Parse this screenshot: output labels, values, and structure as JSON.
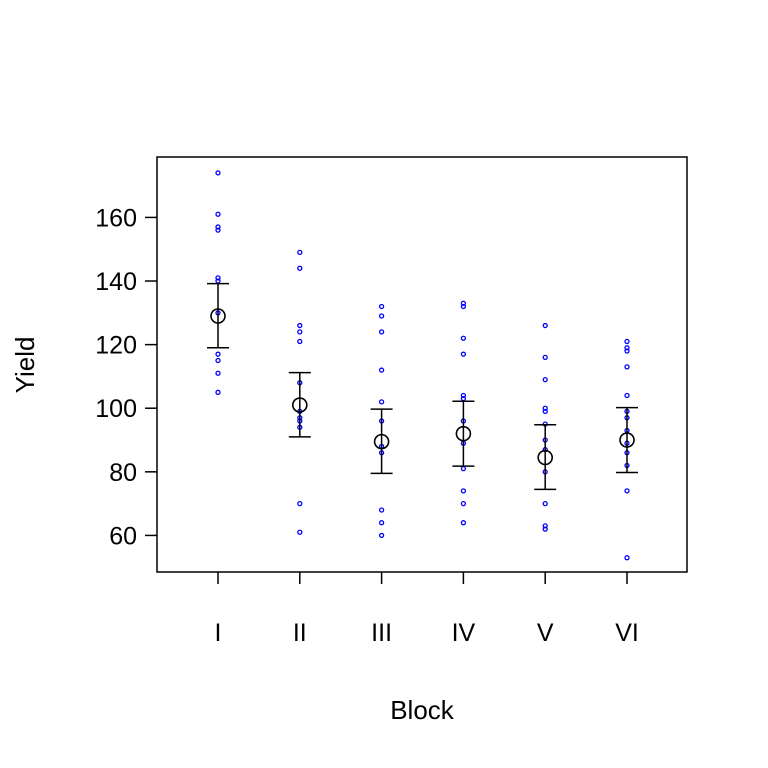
{
  "chart_data": {
    "type": "scatter",
    "xlabel": "Block",
    "ylabel": "Yield",
    "categories": [
      "I",
      "II",
      "III",
      "IV",
      "V",
      "VI"
    ],
    "ylim": [
      48.5,
      179
    ],
    "yticks": [
      60,
      80,
      100,
      120,
      140,
      160
    ],
    "grid": false,
    "colors": {
      "points": "#0000ff",
      "means": "#000000",
      "axes": "#000000"
    },
    "observations": [
      [
        174,
        161,
        157,
        156,
        141,
        140,
        130,
        117,
        115,
        111,
        105
      ],
      [
        149,
        144,
        126,
        124,
        121,
        108,
        99,
        97,
        96,
        94,
        70,
        61
      ],
      [
        132,
        129,
        124,
        112,
        102,
        96,
        88,
        86,
        68,
        64,
        60
      ],
      [
        133,
        132,
        122,
        117,
        104,
        103,
        96,
        89,
        81,
        74,
        70,
        64
      ],
      [
        126,
        116,
        109,
        100,
        99,
        95,
        90,
        87,
        80,
        70,
        63,
        62
      ],
      [
        121,
        119,
        118,
        113,
        104,
        99,
        97,
        93,
        89,
        86,
        82,
        74,
        53
      ]
    ],
    "means": [
      129,
      101,
      89.5,
      92,
      84.5,
      90
    ],
    "error_lower": [
      119,
      91,
      79.5,
      81.8,
      74.5,
      79.8
    ],
    "error_upper": [
      139.2,
      111.2,
      99.7,
      102.2,
      94.8,
      100.2
    ]
  }
}
